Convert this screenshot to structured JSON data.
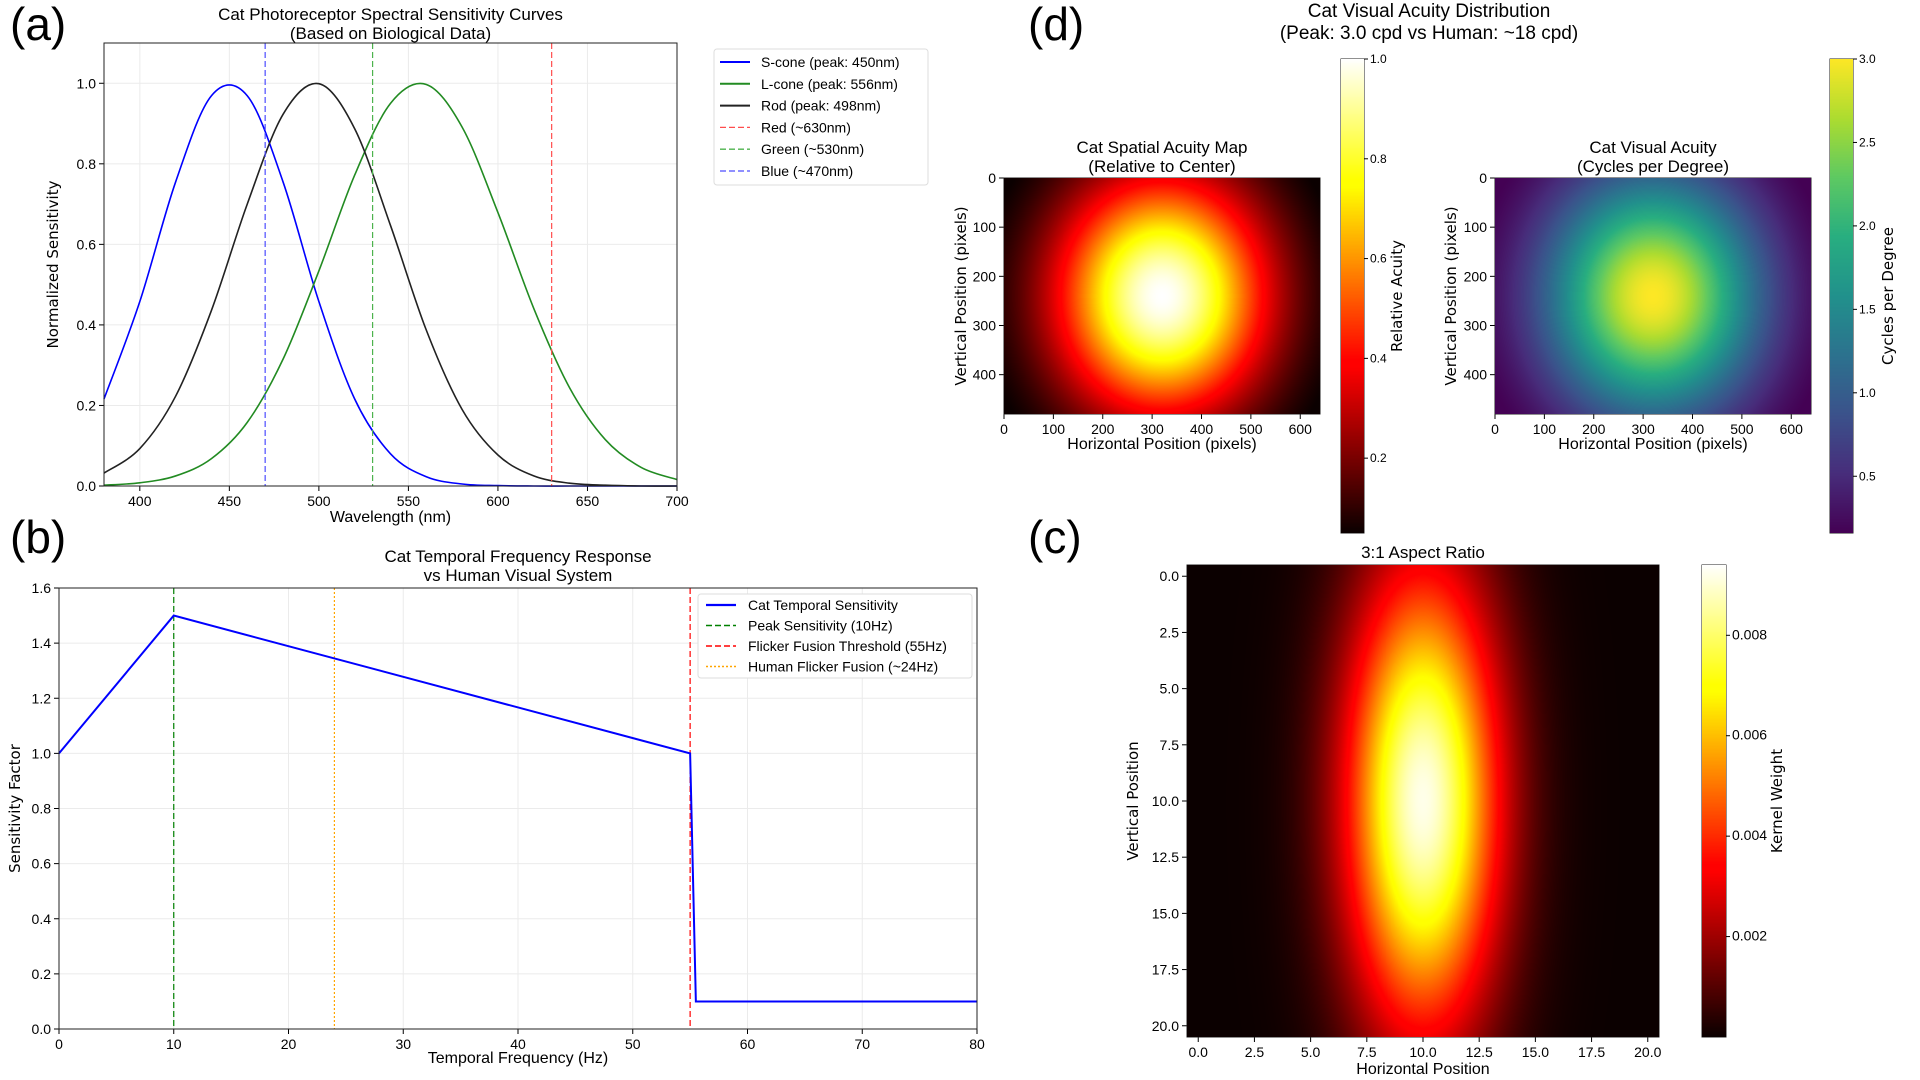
{
  "figure": {
    "panel_labels": {
      "a": "(a)",
      "b": "(b)",
      "c": "(c)",
      "d": "(d)"
    },
    "d_suptitle": [
      "Cat Visual Acuity Distribution",
      "(Peak: 3.0 cpd vs Human: ~18 cpd)"
    ]
  },
  "chart_data": [
    {
      "id": "a",
      "type": "line",
      "title": [
        "Cat Photoreceptor Spectral Sensitivity Curves",
        "(Based on Biological Data)"
      ],
      "xlabel": "Wavelength (nm)",
      "ylabel": "Normalized Sensitivity",
      "xlim": [
        380,
        700
      ],
      "ylim": [
        0,
        1.1
      ],
      "xticks": [
        400,
        450,
        500,
        550,
        600,
        650,
        700
      ],
      "xtick_labels": [
        "400",
        "450",
        "500",
        "550",
        "600",
        "650",
        "700"
      ],
      "yticks": [
        0,
        0.2,
        0.4,
        0.6,
        0.8,
        1.0
      ],
      "ytick_labels": [
        "0.0",
        "0.2",
        "0.4",
        "0.6",
        "0.8",
        "1.0"
      ],
      "grid": true,
      "legend_position": "outside-right-top",
      "x": [
        380,
        400,
        420,
        440,
        460,
        480,
        500,
        520,
        540,
        560,
        580,
        600,
        620,
        640,
        660,
        680,
        700
      ],
      "series": [
        {
          "name": "S-cone (peak: 450nm)",
          "color": "#0000ff",
          "style": "solid",
          "values": [
            0.216,
            0.458,
            0.755,
            0.969,
            0.969,
            0.755,
            0.458,
            0.216,
            0.08,
            0.023,
            0.005,
            0.001,
            0,
            0,
            0,
            0,
            0
          ]
        },
        {
          "name": "L-cone (peak: 556nm)",
          "color": "#228b22",
          "style": "solid",
          "values": [
            0.002,
            0.008,
            0.025,
            0.068,
            0.158,
            0.315,
            0.534,
            0.772,
            0.95,
            0.997,
            0.891,
            0.679,
            0.441,
            0.244,
            0.115,
            0.046,
            0.016
          ]
        },
        {
          "name": "Rod (peak: 498nm)",
          "color": "#222222",
          "style": "solid",
          "values": [
            0.032,
            0.093,
            0.223,
            0.436,
            0.7,
            0.923,
            0.999,
            0.887,
            0.647,
            0.387,
            0.19,
            0.077,
            0.025,
            0.007,
            0.002,
            0,
            0
          ]
        }
      ],
      "vlines": [
        {
          "name": "Red (~630nm)",
          "x": 630,
          "color": "#ff4d4d",
          "style": "dashed"
        },
        {
          "name": "Green (~530nm)",
          "x": 530,
          "color": "#4db34d",
          "style": "dashed"
        },
        {
          "name": "Blue (~470nm)",
          "x": 470,
          "color": "#4d4dff",
          "style": "dashed"
        }
      ]
    },
    {
      "id": "b",
      "type": "line",
      "title": [
        "Cat Temporal Frequency Response",
        "vs Human Visual System"
      ],
      "xlabel": "Temporal Frequency (Hz)",
      "ylabel": "Sensitivity Factor",
      "xlim": [
        0,
        80
      ],
      "ylim": [
        0,
        1.6
      ],
      "xticks": [
        0,
        10,
        20,
        30,
        40,
        50,
        60,
        70,
        80
      ],
      "xtick_labels": [
        "0",
        "10",
        "20",
        "30",
        "40",
        "50",
        "60",
        "70",
        "80"
      ],
      "yticks": [
        0,
        0.2,
        0.4,
        0.6,
        0.8,
        1.0,
        1.2,
        1.4,
        1.6
      ],
      "ytick_labels": [
        "0.0",
        "0.2",
        "0.4",
        "0.6",
        "0.8",
        "1.0",
        "1.2",
        "1.4",
        "1.6"
      ],
      "grid": true,
      "legend_position": "top-right",
      "series": [
        {
          "name": "Cat Temporal Sensitivity",
          "color": "#0000ff",
          "style": "solid",
          "x": [
            0,
            10,
            55,
            55.5,
            80
          ],
          "values": [
            1.0,
            1.5,
            1.0,
            0.1,
            0.1
          ]
        }
      ],
      "vlines": [
        {
          "name": "Peak Sensitivity (10Hz)",
          "x": 10,
          "color": "#008000",
          "style": "dashed"
        },
        {
          "name": "Flicker Fusion Threshold (55Hz)",
          "x": 55,
          "color": "#ff0000",
          "style": "dashed"
        },
        {
          "name": "Human Flicker Fusion (~24Hz)",
          "x": 24,
          "color": "#ffa500",
          "style": "dotted"
        }
      ]
    },
    {
      "id": "d-left",
      "type": "heatmap",
      "title": [
        "Cat Spatial Acuity Map",
        "(Relative to Center)"
      ],
      "xlabel": "Horizontal Position (pixels)",
      "ylabel": "Vertical Position (pixels)",
      "colormap": "hot",
      "colorbar_label": "Relative Acuity",
      "extent": {
        "x": [
          0,
          640
        ],
        "y": [
          480,
          0
        ]
      },
      "xticks": [
        0,
        100,
        200,
        300,
        400,
        500,
        600
      ],
      "xtick_labels": [
        "0",
        "100",
        "200",
        "300",
        "400",
        "500",
        "600"
      ],
      "yticks": [
        0,
        100,
        200,
        300,
        400
      ],
      "ytick_labels": [
        "0",
        "100",
        "200",
        "300",
        "400"
      ],
      "clim": [
        0.05,
        1.0
      ],
      "cbar_ticks": [
        0.2,
        0.4,
        0.6,
        0.8,
        1.0
      ],
      "cbar_tick_labels": [
        "0.2",
        "0.4",
        "0.6",
        "0.8",
        "1.0"
      ],
      "peak_value": 1.0,
      "center": [
        320,
        240
      ],
      "spread": [
        150,
        170
      ]
    },
    {
      "id": "d-right",
      "type": "heatmap",
      "title": [
        "Cat Visual Acuity",
        "(Cycles per Degree)"
      ],
      "xlabel": "Horizontal Position (pixels)",
      "ylabel": "Vertical Position (pixels)",
      "colormap": "viridis",
      "colorbar_label": "Cycles per Degree",
      "extent": {
        "x": [
          0,
          640
        ],
        "y": [
          480,
          0
        ]
      },
      "xticks": [
        0,
        100,
        200,
        300,
        400,
        500,
        600
      ],
      "xtick_labels": [
        "0",
        "100",
        "200",
        "300",
        "400",
        "500",
        "600"
      ],
      "yticks": [
        0,
        100,
        200,
        300,
        400
      ],
      "ytick_labels": [
        "0",
        "100",
        "200",
        "300",
        "400"
      ],
      "clim": [
        0.16,
        3.0
      ],
      "cbar_ticks": [
        0.5,
        1.0,
        1.5,
        2.0,
        2.5,
        3.0
      ],
      "cbar_tick_labels": [
        "0.5",
        "1.0",
        "1.5",
        "2.0",
        "2.5",
        "3.0"
      ],
      "peak_value": 3.0,
      "center": [
        320,
        240
      ],
      "spread": [
        150,
        170
      ]
    },
    {
      "id": "c",
      "type": "heatmap",
      "title": [
        "3:1 Aspect Ratio"
      ],
      "xlabel": "Horizontal Position",
      "ylabel": "Vertical Position",
      "colormap": "hot",
      "colorbar_label": "Kernel Weight",
      "extent": {
        "x": [
          -0.5,
          20.5
        ],
        "y": [
          20.5,
          -0.5
        ]
      },
      "xticks": [
        0,
        2.5,
        5,
        7.5,
        10,
        12.5,
        15,
        17.5,
        20
      ],
      "xtick_labels": [
        "0.0",
        "2.5",
        "5.0",
        "7.5",
        "10.0",
        "12.5",
        "15.0",
        "17.5",
        "20.0"
      ],
      "yticks": [
        0,
        2.5,
        5,
        7.5,
        10,
        12.5,
        15,
        17.5,
        20
      ],
      "ytick_labels": [
        "0.0",
        "2.5",
        "5.0",
        "7.5",
        "10.0",
        "12.5",
        "15.0",
        "17.5",
        "20.0"
      ],
      "clim": [
        0,
        0.0094
      ],
      "cbar_ticks": [
        0.002,
        0.004,
        0.006,
        0.008
      ],
      "cbar_tick_labels": [
        "0.002",
        "0.004",
        "0.006",
        "0.008"
      ],
      "peak_value": 0.0092,
      "center": [
        10,
        10
      ],
      "spread": [
        2.4,
        7.2
      ]
    }
  ]
}
